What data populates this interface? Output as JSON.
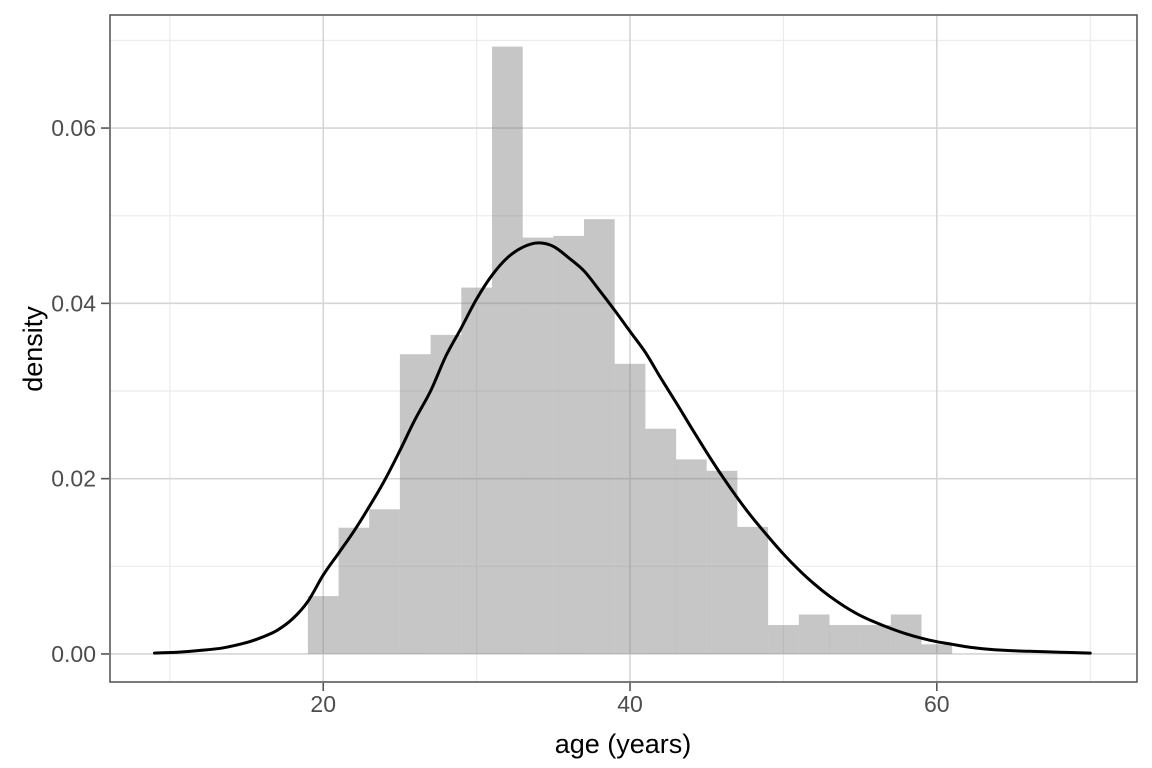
{
  "chart_data": {
    "type": "bar",
    "subtype": "histogram_with_density_curve",
    "title": "",
    "xlabel": "age (years)",
    "ylabel": "density",
    "x_axis": {
      "major_ticks": [
        20,
        40,
        60
      ],
      "major_labels": [
        "20",
        "40",
        "60"
      ],
      "minor_ticks": [
        10,
        30,
        50,
        70
      ],
      "domain": [
        6.1,
        73.05
      ]
    },
    "y_axis": {
      "major_ticks": [
        0.0,
        0.02,
        0.04,
        0.06
      ],
      "major_labels": [
        "0.00",
        "0.02",
        "0.04",
        "0.06"
      ],
      "minor_ticks": [
        0.01,
        0.03,
        0.05,
        0.07
      ],
      "domain": [
        -0.0032,
        0.0729
      ]
    },
    "histogram": {
      "bin_width": 2,
      "bin_starts": [
        19,
        21,
        23,
        25,
        27,
        29,
        31,
        33,
        35,
        37,
        39,
        41,
        43,
        45,
        47,
        49,
        51,
        53,
        55,
        57,
        59
      ],
      "densities": [
        0.0066,
        0.0144,
        0.0165,
        0.0342,
        0.0364,
        0.0418,
        0.0693,
        0.0475,
        0.0477,
        0.0496,
        0.0331,
        0.0257,
        0.0222,
        0.0209,
        0.0145,
        0.0033,
        0.0045,
        0.0033,
        0.0033,
        0.0045,
        0.0011
      ]
    },
    "density_curve": {
      "points": [
        [
          9,
          0.0001
        ],
        [
          10.5,
          0.0002
        ],
        [
          12,
          0.0004
        ],
        [
          13.5,
          0.0007
        ],
        [
          15,
          0.0013
        ],
        [
          16,
          0.0019
        ],
        [
          17,
          0.0027
        ],
        [
          18,
          0.004
        ],
        [
          19,
          0.006
        ],
        [
          20,
          0.009
        ],
        [
          21,
          0.0115
        ],
        [
          22,
          0.014
        ],
        [
          23,
          0.0168
        ],
        [
          24,
          0.0198
        ],
        [
          25,
          0.0232
        ],
        [
          26,
          0.0268
        ],
        [
          27,
          0.03
        ],
        [
          28,
          0.034
        ],
        [
          29,
          0.0372
        ],
        [
          30,
          0.0405
        ],
        [
          31,
          0.0432
        ],
        [
          32,
          0.0452
        ],
        [
          33,
          0.0464
        ],
        [
          34,
          0.0469
        ],
        [
          35,
          0.0465
        ],
        [
          36,
          0.0452
        ],
        [
          37,
          0.0437
        ],
        [
          38,
          0.0415
        ],
        [
          39,
          0.0392
        ],
        [
          40,
          0.0368
        ],
        [
          41,
          0.0344
        ],
        [
          42,
          0.0315
        ],
        [
          43,
          0.0287
        ],
        [
          44,
          0.0258
        ],
        [
          45,
          0.023
        ],
        [
          46,
          0.0203
        ],
        [
          47,
          0.0178
        ],
        [
          48,
          0.0155
        ],
        [
          49,
          0.0134
        ],
        [
          50,
          0.0114
        ],
        [
          51,
          0.0096
        ],
        [
          52,
          0.008
        ],
        [
          53,
          0.0066
        ],
        [
          54,
          0.0054
        ],
        [
          55,
          0.0044
        ],
        [
          56,
          0.0036
        ],
        [
          57,
          0.0029
        ],
        [
          58,
          0.0023
        ],
        [
          59,
          0.0018
        ],
        [
          60,
          0.0014
        ],
        [
          61,
          0.0011
        ],
        [
          62,
          0.0008
        ],
        [
          63,
          0.0006
        ],
        [
          64.5,
          0.0004
        ],
        [
          66,
          0.0003
        ],
        [
          68,
          0.0002
        ],
        [
          70,
          0.0001
        ]
      ]
    },
    "grid": {
      "major_on": true,
      "minor_on": true
    },
    "legend": "none",
    "colors": {
      "background": "#ffffff",
      "panel_background": "#ffffff",
      "panel_border": "#595959",
      "grid_major": "#d6d6d6",
      "grid_minor": "#ebebeb",
      "bar_fill_rgba": "rgba(128,128,128,0.45)",
      "curve": "#000000",
      "axis_tick": "#555555",
      "tick_label": "#4d4d4d",
      "axis_title": "#000000"
    }
  }
}
